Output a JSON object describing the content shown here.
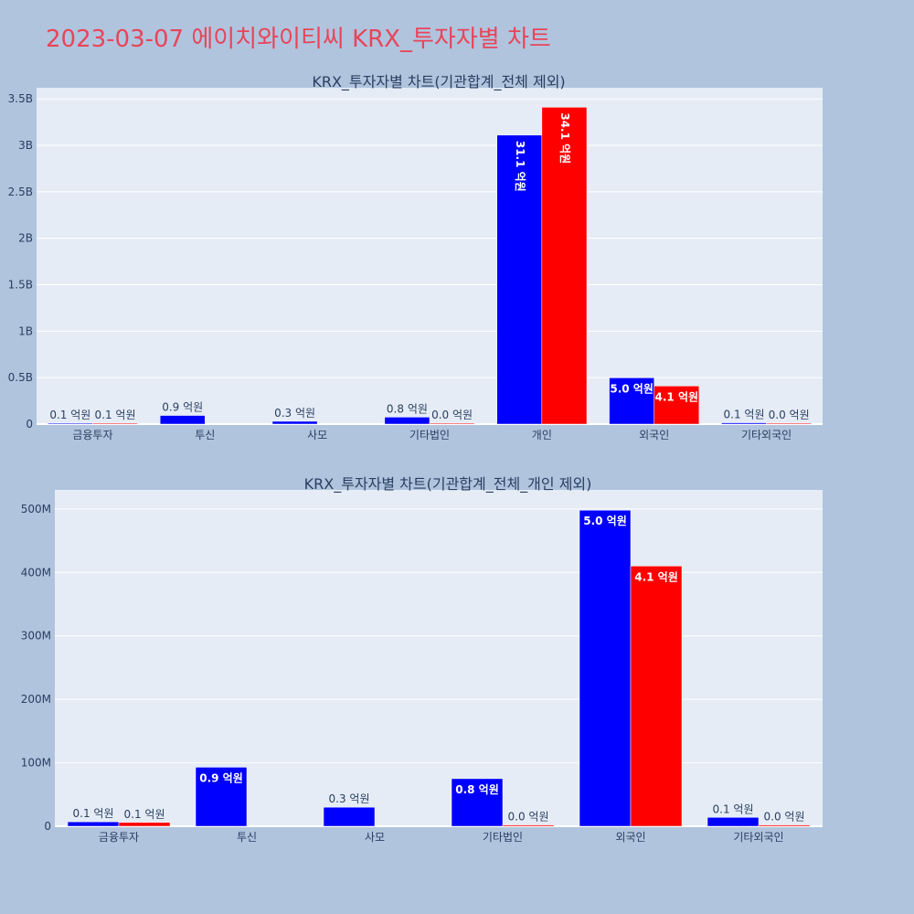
{
  "page": {
    "title": "2023-03-07 에이치와이티씨 KRX_투자자별 차트"
  },
  "colors": {
    "background": "#b0c4de",
    "plot_bg": "#e5ecf6",
    "title": "#e8455a",
    "text": "#2a3f5f",
    "series_a": "#0000ff",
    "series_b": "#ff0000"
  },
  "chart_data": [
    {
      "type": "bar",
      "title": "KRX_투자자별 차트(기관합계_전체 제외)",
      "categories": [
        "금융투자",
        "투신",
        "사모",
        "기타법인",
        "개인",
        "외국인",
        "기타외국인"
      ],
      "series": [
        {
          "color": "#0000ff",
          "values": [
            7000000,
            93000000,
            30000000,
            75000000,
            3110000000,
            498000000,
            14000000
          ],
          "labels": [
            "0.1 억원",
            "0.9 억원",
            "0.3 억원",
            "0.8 억원",
            "31.1 억원",
            "5.0 억원",
            "0.1 억원"
          ]
        },
        {
          "color": "#ff0000",
          "values": [
            6000000,
            0,
            0,
            2000000,
            3410000000,
            410000000,
            2000000
          ],
          "labels": [
            "0.1 억원",
            "",
            "",
            "0.0 억원",
            "34.1 억원",
            "4.1 억원",
            "0.0 억원"
          ]
        }
      ],
      "yticks": [
        0,
        500000000,
        1000000000,
        1500000000,
        2000000000,
        2500000000,
        3000000000,
        3500000000
      ],
      "yticklabels": [
        "0",
        "0.5B",
        "1B",
        "1.5B",
        "2B",
        "2.5B",
        "3B",
        "3.5B"
      ],
      "ylim": [
        0,
        3620000000
      ],
      "grid": true,
      "legend": "none"
    },
    {
      "type": "bar",
      "title": "KRX_투자자별 차트(기관합계_전체_개인 제외)",
      "categories": [
        "금융투자",
        "투신",
        "사모",
        "기타법인",
        "외국인",
        "기타외국인"
      ],
      "series": [
        {
          "color": "#0000ff",
          "values": [
            7000000,
            93000000,
            30000000,
            75000000,
            498000000,
            14000000
          ],
          "labels": [
            "0.1 억원",
            "0.9 억원",
            "0.3 억원",
            "0.8 억원",
            "5.0 억원",
            "0.1 억원"
          ]
        },
        {
          "color": "#ff0000",
          "values": [
            6000000,
            0,
            0,
            2000000,
            410000000,
            2000000
          ],
          "labels": [
            "0.1 억원",
            "",
            "",
            "0.0 억원",
            "4.1 억원",
            "0.0 억원"
          ]
        }
      ],
      "yticks": [
        0,
        100000000,
        200000000,
        300000000,
        400000000,
        500000000
      ],
      "yticklabels": [
        "0",
        "100M",
        "200M",
        "300M",
        "400M",
        "500M"
      ],
      "ylim": [
        0,
        530000000
      ],
      "grid": true,
      "legend": "none"
    }
  ]
}
